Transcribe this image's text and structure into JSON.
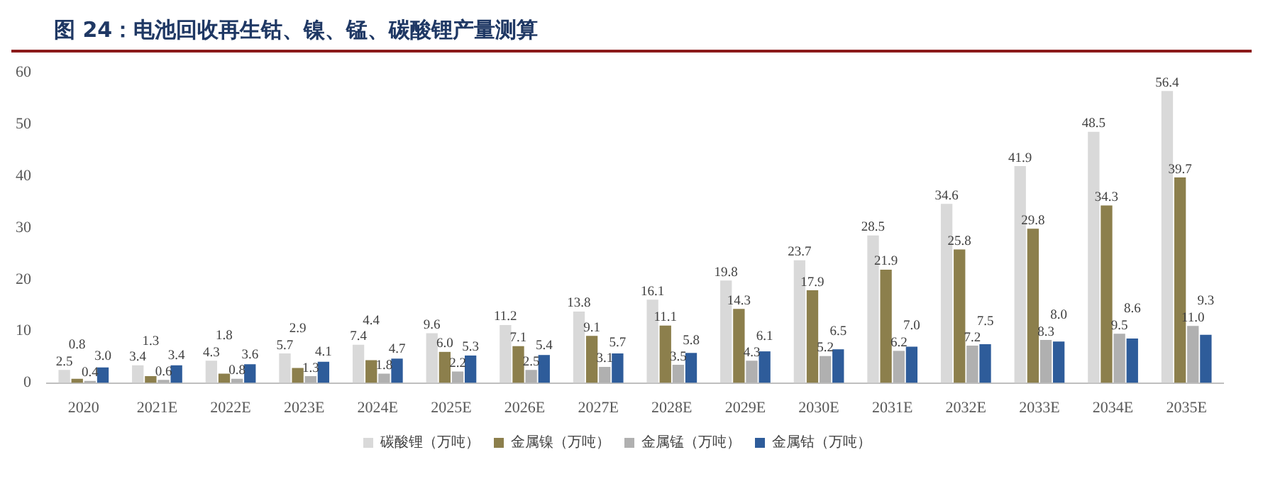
{
  "chart_data": {
    "type": "bar",
    "title": "图 24：电池回收再生钴、镍、锰、碳酸锂产量测算",
    "categories": [
      "2020",
      "2021E",
      "2022E",
      "2023E",
      "2024E",
      "2025E",
      "2026E",
      "2027E",
      "2028E",
      "2029E",
      "2030E",
      "2031E",
      "2032E",
      "2033E",
      "2034E",
      "2035E"
    ],
    "series": [
      {
        "name": "碳酸锂（万吨）",
        "color": "#d9d9d9",
        "values": [
          2.5,
          3.4,
          4.3,
          5.7,
          7.4,
          9.6,
          11.2,
          13.8,
          16.1,
          19.8,
          23.7,
          28.5,
          34.6,
          41.9,
          48.5,
          56.4
        ],
        "value_labels": [
          "2.5",
          "3.4",
          "4.3",
          "5.7",
          "7.4",
          "9.6",
          "11.2",
          "13.8",
          "16.1",
          "19.8",
          "23.7",
          "28.5",
          "34.6",
          "41.9",
          "48.5",
          "56.4"
        ]
      },
      {
        "name": "金属镍（万吨）",
        "color": "#8c7f4c",
        "values": [
          0.8,
          1.3,
          1.8,
          2.9,
          4.4,
          6.0,
          7.1,
          9.1,
          11.1,
          14.3,
          17.9,
          21.9,
          25.8,
          29.8,
          34.3,
          39.7
        ],
        "value_labels": [
          "0.8",
          "1.3",
          "1.8",
          "2.9",
          "4.4",
          "6.0",
          "7.1",
          "9.1",
          "11.1",
          "14.3",
          "17.9",
          "21.9",
          "25.8",
          "29.8",
          "34.3",
          "39.7"
        ]
      },
      {
        "name": "金属锰（万吨）",
        "color": "#b0b0b0",
        "values": [
          0.4,
          0.6,
          0.8,
          1.3,
          1.8,
          2.2,
          2.5,
          3.1,
          3.5,
          4.3,
          5.2,
          6.2,
          7.2,
          8.3,
          9.5,
          11.0
        ],
        "value_labels": [
          "0.4",
          "0.6",
          "0.8",
          "1.3",
          "1.8",
          "2.2",
          "2.5",
          "3.1",
          "3.5",
          "4.3",
          "5.2",
          "6.2",
          "7.2",
          "8.3",
          "9.5",
          "11.0"
        ]
      },
      {
        "name": "金属钴（万吨）",
        "color": "#2e5c9a",
        "values": [
          3.0,
          3.4,
          3.6,
          4.1,
          4.7,
          5.3,
          5.4,
          5.7,
          5.8,
          6.1,
          6.5,
          7.0,
          7.5,
          8.0,
          8.6,
          9.3
        ],
        "value_labels": [
          "3.0",
          "3.4",
          "3.6",
          "4.1",
          "4.7",
          "5.3",
          "5.4",
          "5.7",
          "5.8",
          "6.1",
          "6.5",
          "7.0",
          "7.5",
          "8.0",
          "8.6",
          "9.3"
        ]
      }
    ],
    "ylim": [
      0,
      60
    ],
    "yticks": [
      0,
      10,
      20,
      30,
      40,
      50,
      60
    ],
    "grid": false,
    "legend": "bottom"
  }
}
